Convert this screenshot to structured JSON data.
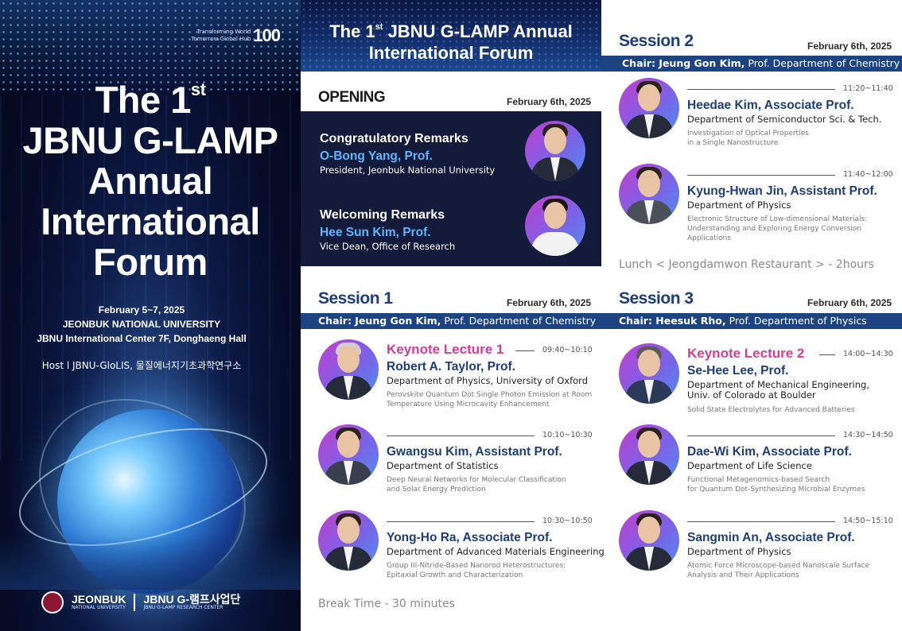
{
  "cover": {
    "brand_line1": "Transforming World",
    "brand_line2": "Tomorrow Global Hub",
    "brand_number": "100",
    "title_line1": "The 1",
    "title_sup": "st",
    "title_line2": "JBNU G-LAMP",
    "title_line3": "Annual",
    "title_line4": "International",
    "title_line5": "Forum",
    "dates": "February 5~7, 2025",
    "university": "JEONBUK NATIONAL UNIVERSITY",
    "venue": "JBNU International Center 7F, Donghaeng Hall",
    "host": "Host  l  JBNU-GloLIS, 물질에너지기초과학연구소",
    "logo_left_main": "JEONBUK",
    "logo_left_sub": "NATIONAL UNIVERSITY",
    "logo_right_main": "JBNU G-램프사업단",
    "logo_right_sub": "JBNU G-LAMP RESEARCH CENTER"
  },
  "header": {
    "line1_prefix": "The 1",
    "line1_sup": "st",
    "line1_suffix": " JBNU G-LAMP Annual",
    "line2": "International Forum"
  },
  "opening": {
    "title": "OPENING",
    "date": "February 6th, 2025",
    "items": [
      {
        "heading": "Congratulatory Remarks",
        "name": "O-Bong Yang, Prof.",
        "role": "President, Jeonbuk National University"
      },
      {
        "heading": "Welcoming Remarks",
        "name": "Hee Sun Kim, Prof.",
        "role": "Vice Dean, Office of Research"
      }
    ]
  },
  "session1": {
    "title": "Session 1",
    "date": "February 6th, 2025",
    "chair_name": "Chair: Jeung Gon Kim,",
    "chair_role": " Prof. Department of Chemistry",
    "talks": [
      {
        "label": "Keynote Lecture 1",
        "time": "09:40~10:10",
        "name": "Robert A. Taylor, Prof.",
        "dept": "Department of Physics, University of Oxford",
        "topic1": "Perovskite Quantum Dot Single Photon Emission at Room",
        "topic2": "Temperature Using Microcavity Enhancement"
      },
      {
        "label": "",
        "time": "10:10~10:30",
        "name": "Gwangsu Kim, Assistant Prof.",
        "dept": "Department of Statistics",
        "topic1": "Deep Neural Networks for Molecular Classification",
        "topic2": "and Solar Energy Prediction"
      },
      {
        "label": "",
        "time": "10:30~10:50",
        "name": "Yong-Ho Ra, Associate Prof.",
        "dept": "Department of Advanced Materials Engineering",
        "topic1": "Group III-Nitride-Based Nanorod Heterostructures:",
        "topic2": "Epitaxial Growth and Characterization"
      }
    ],
    "break": "Break Time - 30 minutes"
  },
  "session2": {
    "title": "Session 2",
    "date": "February 6th, 2025",
    "chair_name": "Chair: Jeung Gon Kim,",
    "chair_role": " Prof. Department of Chemistry",
    "talks": [
      {
        "time": "11:20~11:40",
        "name": "Heedae Kim, Associate Prof.",
        "dept": "Department of Semiconductor Sci. & Tech.",
        "topic1": "Investigation of Optical Properties",
        "topic2": "in a Single Nanostructure",
        "topic3": ""
      },
      {
        "time": "11:40~12:00",
        "name": "Kyung-Hwan Jin, Assistant Prof.",
        "dept": "Department of Physics",
        "topic1": "Electronic Structure of Low-dimensional Materials:",
        "topic2": "Understanding and Exploring Energy Conversion",
        "topic3": "Applications"
      }
    ],
    "lunch": "Lunch < Jeongdamwon Restaurant > - 2hours"
  },
  "session3": {
    "title": "Session 3",
    "date": "February 6th, 2025",
    "chair_name": "Chair: Heesuk Rho,",
    "chair_role": " Prof. Department of Physics",
    "talks": [
      {
        "label": "Keynote Lecture 2",
        "time": "14:00~14:30",
        "name": "Se-Hee Lee, Prof.",
        "dept1": "Department of Mechanical Engineering,",
        "dept2": "Univ. of Colorado at Boulder",
        "topic1": "Solid State Electrolytes for Advanced Batteries",
        "topic2": ""
      },
      {
        "label": "",
        "time": "14:30~14:50",
        "name": "Dae-Wi Kim, Associate Prof.",
        "dept1": "Department of Life Science",
        "dept2": "",
        "topic1": "Functional Metagenomics-based Search",
        "topic2": "for Quantum Dot-Synthesizing Microbial Enzymes"
      },
      {
        "label": "",
        "time": "14:50~15:10",
        "name": "Sangmin An, Associate Prof.",
        "dept1": "Department of Physics",
        "dept2": "",
        "topic1": "Atomic Force Microscope-based Nanoscale Surface",
        "topic2": "Analysis and Their Applications"
      }
    ]
  }
}
